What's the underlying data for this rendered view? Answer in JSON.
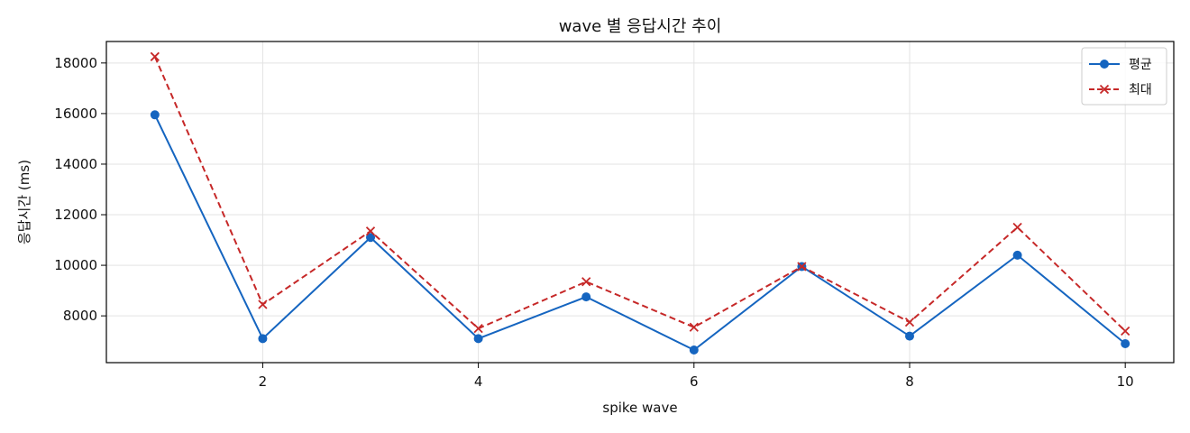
{
  "chart_data": {
    "type": "line",
    "title": "wave 별 응답시간 추이",
    "xlabel": "spike wave",
    "ylabel": "응답시간 (ms)",
    "x": [
      1,
      2,
      3,
      4,
      5,
      6,
      7,
      8,
      9,
      10
    ],
    "xlim": [
      0.55,
      10.45
    ],
    "ylim": [
      6150,
      18850
    ],
    "xticks": [
      2,
      4,
      6,
      8,
      10
    ],
    "yticks": [
      8000,
      10000,
      12000,
      14000,
      16000,
      18000
    ],
    "grid": true,
    "legend_position": "top-right",
    "series": [
      {
        "name": "평균",
        "values": [
          15950,
          7100,
          11100,
          7100,
          8750,
          6650,
          9950,
          7200,
          10400,
          6900
        ],
        "color": "#1565c0",
        "line_style": "solid",
        "marker": "circle"
      },
      {
        "name": "최대",
        "values": [
          18250,
          8450,
          11350,
          7500,
          9350,
          7550,
          9950,
          7750,
          11500,
          7400
        ],
        "color": "#c62828",
        "line_style": "dashed",
        "marker": "x"
      }
    ]
  }
}
